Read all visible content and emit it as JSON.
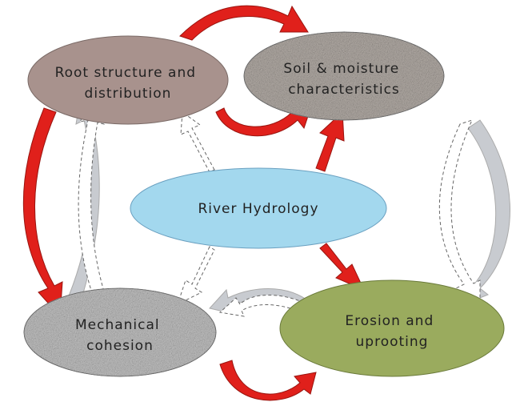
{
  "nodes": [
    {
      "lines": [
        "Root structure and",
        "distribution"
      ]
    },
    {
      "lines": [
        "Soil & moisture",
        "characteristics"
      ]
    },
    {
      "lines": [
        "River Hydrology"
      ]
    },
    {
      "lines": [
        "Mechanical",
        "cohesion"
      ]
    },
    {
      "lines": [
        "Erosion and",
        "uprooting"
      ]
    }
  ]
}
